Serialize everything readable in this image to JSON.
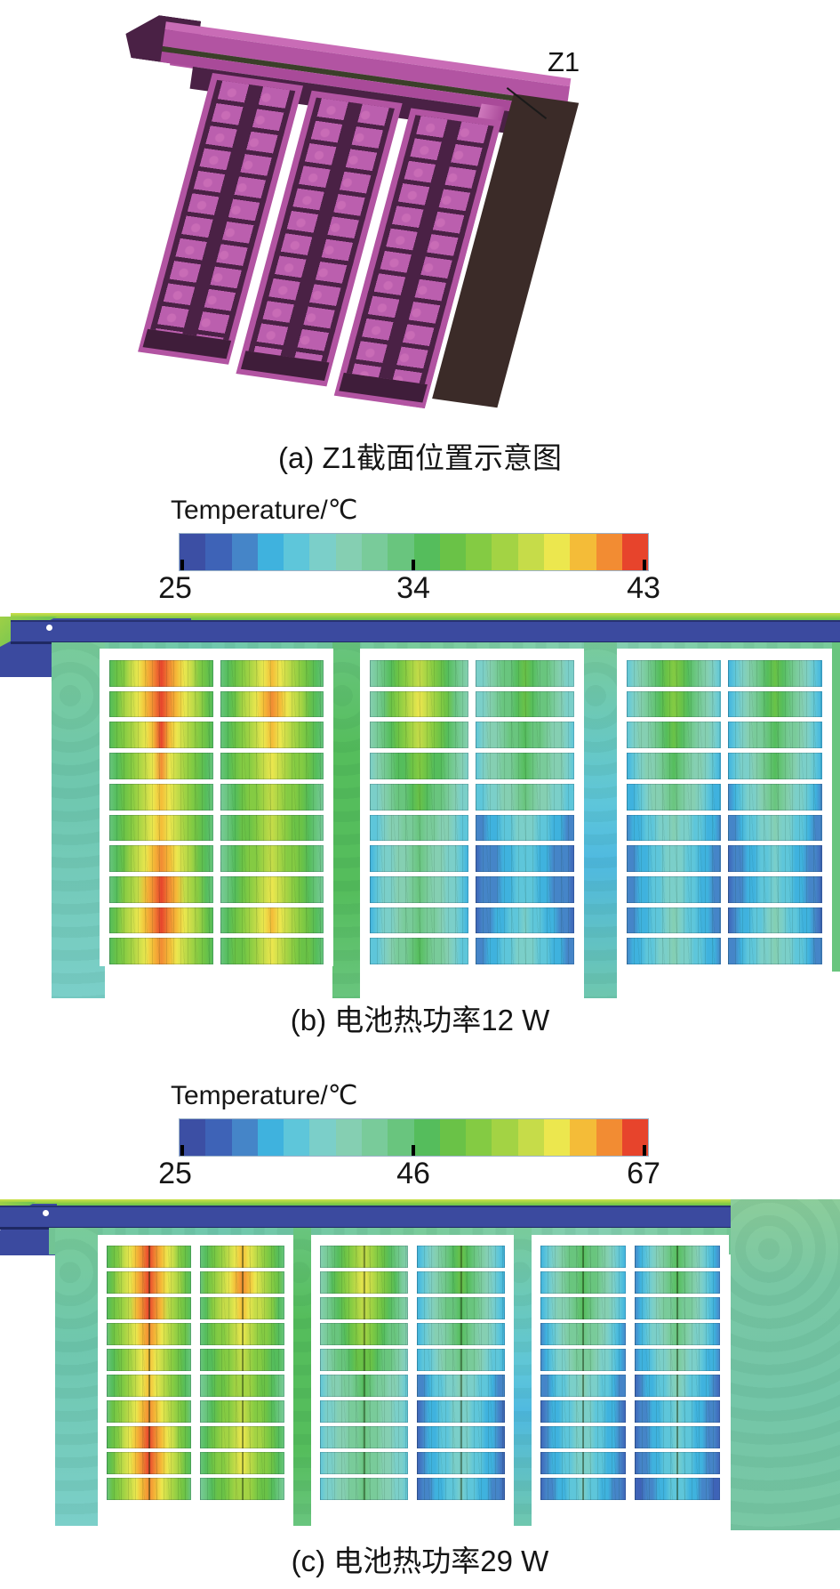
{
  "panel_a": {
    "caption": "(a) Z1截面位置示意图",
    "annotation": "Z1",
    "model_colors": {
      "face": "#b254a2",
      "light": "#c96cb6",
      "shadow": "#4a2145",
      "slab": "#3b2b28",
      "olive": "#3b3f29"
    }
  },
  "panel_b": {
    "caption": "(b) 电池热功率12 W",
    "colorbar": {
      "title": "Temperature/℃",
      "ticks": [
        "25",
        "34",
        "43"
      ]
    }
  },
  "panel_c": {
    "caption": "(c) 电池热功率29 W",
    "colorbar": {
      "title": "Temperature/℃",
      "ticks": [
        "25",
        "46",
        "67"
      ]
    }
  },
  "colorbar_colors": [
    "#3c4fa4",
    "#3e63b7",
    "#4585c8",
    "#3fb2de",
    "#5ec6da",
    "#7bcfc9",
    "#85cfb2",
    "#79cb9a",
    "#69c57e",
    "#55bd5c",
    "#6ac247",
    "#84cb43",
    "#a3d344",
    "#c6dc49",
    "#ece74e",
    "#f4bc38",
    "#f28c33",
    "#e7442c"
  ],
  "chart_data": [
    {
      "type": "heatmap",
      "panel": "b",
      "caption": "(b) 电池热功率12 W",
      "colorbar_title": "Temperature/℃",
      "colorbar_ticks": [
        25,
        34,
        43
      ],
      "value_range_c": [
        25,
        43
      ],
      "unit": "℃",
      "legend_position": "top",
      "rows_per_column": 10,
      "modules": [
        {
          "columns": [
            {
              "cells_edge_peak_c": [
                [
                  34,
                  42.5
                ],
                [
                  34,
                  43
                ],
                [
                  34,
                  42
                ],
                [
                  33,
                  41
                ],
                [
                  33,
                  40
                ],
                [
                  33,
                  40
                ],
                [
                  33,
                  41.5
                ],
                [
                  33,
                  42.5
                ],
                [
                  34,
                  43
                ],
                [
                  34,
                  41.5
                ]
              ]
            },
            {
              "cells_edge_peak_c": [
                [
                  33,
                  40
                ],
                [
                  33,
                  41.5
                ],
                [
                  33,
                  40.5
                ],
                [
                  33,
                  39.5
                ],
                [
                  32.5,
                  38.5
                ],
                [
                  32.5,
                  38
                ],
                [
                  32.5,
                  38.5
                ],
                [
                  32.5,
                  39.5
                ],
                [
                  33,
                  40
                ],
                [
                  33,
                  39
                ]
              ]
            }
          ]
        },
        {
          "columns": [
            {
              "cells_edge_peak_c": [
                [
                  31,
                  38.5
                ],
                [
                  31,
                  39.5
                ],
                [
                  31,
                  38
                ],
                [
                  30.5,
                  36.5
                ],
                [
                  30,
                  35
                ],
                [
                  29,
                  33.5
                ],
                [
                  28.5,
                  33
                ],
                [
                  28.5,
                  33
                ],
                [
                  28.5,
                  33.5
                ],
                [
                  29,
                  34
                ]
              ]
            },
            {
              "cells_edge_peak_c": [
                [
                  30,
                  35
                ],
                [
                  30,
                  35
                ],
                [
                  29.5,
                  34.5
                ],
                [
                  29.5,
                  34
                ],
                [
                  29,
                  33
                ],
                [
                  27,
                  30.5
                ],
                [
                  26.5,
                  29.5
                ],
                [
                  26.5,
                  29.5
                ],
                [
                  26.5,
                  30
                ],
                [
                  27,
                  30.5
                ]
              ]
            }
          ]
        },
        {
          "columns": [
            {
              "cells_edge_peak_c": [
                [
                  29,
                  36
                ],
                [
                  29,
                  36
                ],
                [
                  29,
                  35
                ],
                [
                  28.5,
                  34
                ],
                [
                  28,
                  33
                ],
                [
                  27.5,
                  31.5
                ],
                [
                  27,
                  30.5
                ],
                [
                  27,
                  30.5
                ],
                [
                  27,
                  31
                ],
                [
                  27.5,
                  31.5
                ]
              ]
            },
            {
              "cells_edge_peak_c": [
                [
                  28.5,
                  35
                ],
                [
                  28.5,
                  35
                ],
                [
                  28.5,
                  34.5
                ],
                [
                  28,
                  34
                ],
                [
                  27.5,
                  33
                ],
                [
                  27,
                  31.5
                ],
                [
                  26.5,
                  30.5
                ],
                [
                  26.5,
                  30.5
                ],
                [
                  26.5,
                  31
                ],
                [
                  27,
                  31.5
                ]
              ]
            }
          ]
        }
      ]
    },
    {
      "type": "heatmap",
      "panel": "c",
      "caption": "(c) 电池热功率29 W",
      "colorbar_title": "Temperature/℃",
      "colorbar_ticks": [
        25,
        46,
        67
      ],
      "value_range_c": [
        25,
        67
      ],
      "unit": "℃",
      "legend_position": "top",
      "rows_per_column": 10,
      "modules": [
        {
          "columns": [
            {
              "cells_edge_peak_c": [
                [
                  46,
                  66
                ],
                [
                  46,
                  67
                ],
                [
                  46,
                  65
                ],
                [
                  45,
                  63
                ],
                [
                  45,
                  61
                ],
                [
                  45,
                  61
                ],
                [
                  45,
                  63
                ],
                [
                  46,
                  66
                ],
                [
                  46,
                  67
                ],
                [
                  45,
                  64
                ]
              ]
            },
            {
              "cells_edge_peak_c": [
                [
                  45,
                  61
                ],
                [
                  45,
                  64
                ],
                [
                  45,
                  62
                ],
                [
                  44,
                  58
                ],
                [
                  44,
                  56
                ],
                [
                  43,
                  55
                ],
                [
                  43,
                  56
                ],
                [
                  44,
                  59
                ],
                [
                  44,
                  58
                ],
                [
                  43,
                  55
                ]
              ]
            }
          ]
        },
        {
          "columns": [
            {
              "cells_edge_peak_c": [
                [
                  40,
                  57
                ],
                [
                  40,
                  59
                ],
                [
                  40,
                  56
                ],
                [
                  39,
                  53
                ],
                [
                  38,
                  50
                ],
                [
                  36,
                  46
                ],
                [
                  35,
                  45
                ],
                [
                  35,
                  45
                ],
                [
                  35,
                  45
                ],
                [
                  35,
                  44
                ]
              ]
            },
            {
              "cells_edge_peak_c": [
                [
                  33,
                  50
                ],
                [
                  33,
                  50
                ],
                [
                  33,
                  48
                ],
                [
                  32,
                  47
                ],
                [
                  32,
                  45
                ],
                [
                  30,
                  40
                ],
                [
                  29,
                  38
                ],
                [
                  29,
                  38
                ],
                [
                  29,
                  38
                ],
                [
                  29,
                  37
                ]
              ]
            }
          ]
        },
        {
          "columns": [
            {
              "cells_edge_peak_c": [
                [
                  32,
                  48
                ],
                [
                  32,
                  48
                ],
                [
                  32,
                  47
                ],
                [
                  31,
                  45
                ],
                [
                  31,
                  43
                ],
                [
                  30,
                  40
                ],
                [
                  29,
                  38
                ],
                [
                  29,
                  38
                ],
                [
                  29,
                  38
                ],
                [
                  28,
                  37
                ]
              ]
            },
            {
              "cells_edge_peak_c": [
                [
                  31,
                  46
                ],
                [
                  31,
                  46
                ],
                [
                  31,
                  45
                ],
                [
                  30,
                  44
                ],
                [
                  30,
                  42
                ],
                [
                  29,
                  39
                ],
                [
                  28,
                  37
                ],
                [
                  28,
                  37
                ],
                [
                  28,
                  37
                ],
                [
                  28,
                  36
                ]
              ]
            }
          ]
        }
      ]
    }
  ]
}
